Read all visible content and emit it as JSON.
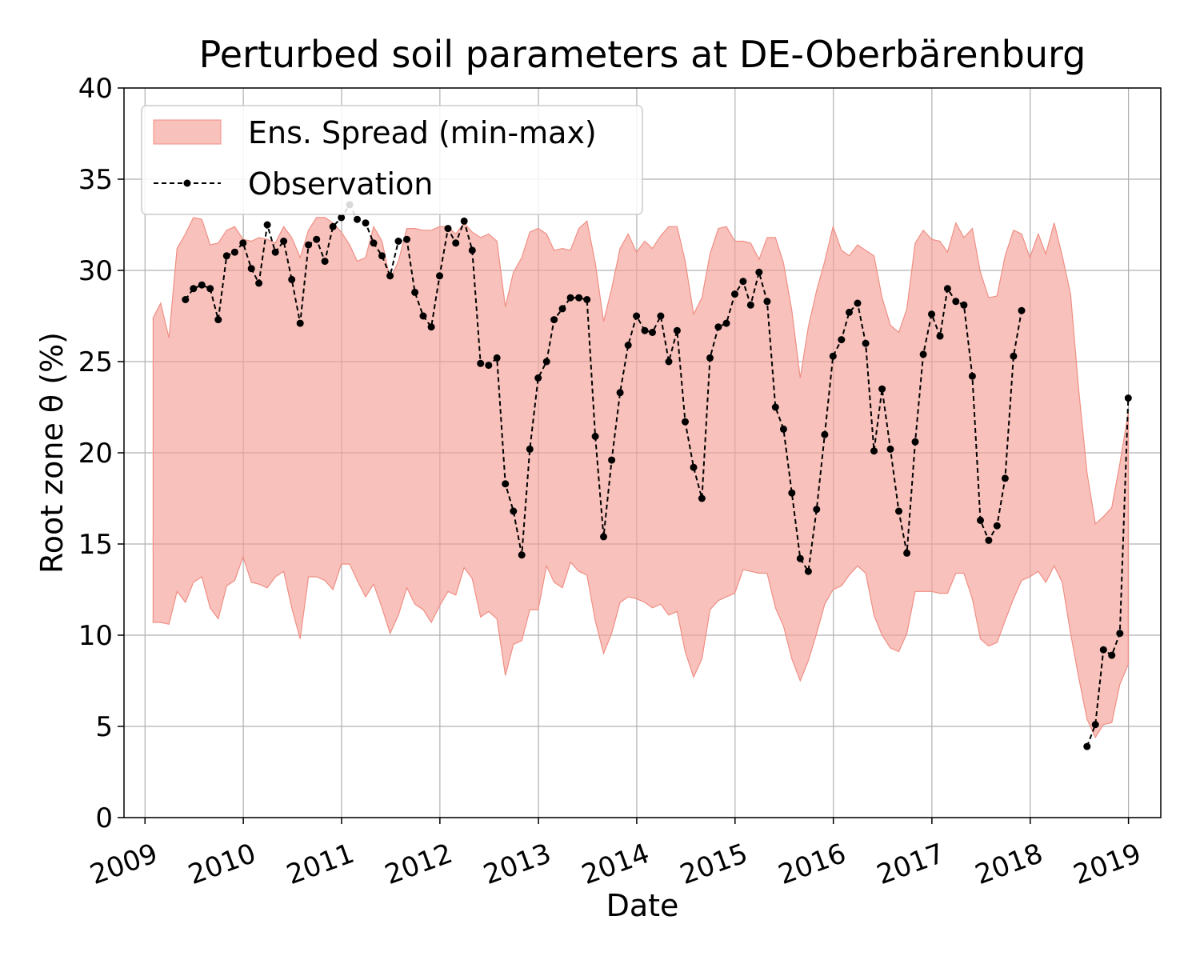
{
  "chart_data": {
    "type": "line",
    "title": "Perturbed soil parameters at DE-Oberbärenburg",
    "xlabel": "Date",
    "ylabel": "Root zone θ  (%)",
    "x_axis": {
      "type": "date",
      "range": [
        "2008-10-15",
        "2019-05-01"
      ],
      "tick_labels": [
        "2009",
        "2010",
        "2011",
        "2012",
        "2013",
        "2014",
        "2015",
        "2016",
        "2017",
        "2018",
        "2019"
      ],
      "tick_rotation_deg": 20
    },
    "ylim": [
      0,
      40
    ],
    "y_ticks": [
      0,
      5,
      10,
      15,
      20,
      25,
      30,
      35,
      40
    ],
    "grid": true,
    "legend": {
      "position": "top-left",
      "entries": [
        "Ens. Spread (min-max)",
        "Observation"
      ]
    },
    "colors": {
      "spread_fill": "#f4a097",
      "spread_edge": "#ef8f85",
      "observation": "#000000",
      "grid": "#b0b0b0"
    },
    "series": [
      {
        "name": "Ens. Spread (min-max)",
        "kind": "band",
        "points": [
          [
            "2009-01-31",
            10.7,
            27.4
          ],
          [
            "2009-02-28",
            10.7,
            28.2
          ],
          [
            "2009-03-31",
            10.6,
            26.3
          ],
          [
            "2009-04-30",
            12.4,
            31.2
          ],
          [
            "2009-05-31",
            11.8,
            32.0
          ],
          [
            "2009-06-30",
            12.9,
            32.9
          ],
          [
            "2009-07-31",
            13.2,
            32.8
          ],
          [
            "2009-08-31",
            11.5,
            31.4
          ],
          [
            "2009-09-30",
            10.9,
            31.5
          ],
          [
            "2009-10-31",
            12.7,
            32.2
          ],
          [
            "2009-11-30",
            13.0,
            32.4
          ],
          [
            "2009-12-31",
            14.3,
            31.7
          ],
          [
            "2010-01-31",
            12.9,
            31.6
          ],
          [
            "2010-02-28",
            12.8,
            31.8
          ],
          [
            "2010-03-31",
            12.6,
            31.7
          ],
          [
            "2010-04-30",
            13.2,
            31.5
          ],
          [
            "2010-05-31",
            13.5,
            32.4
          ],
          [
            "2010-06-30",
            11.5,
            31.8
          ],
          [
            "2010-07-31",
            9.8,
            30.7
          ],
          [
            "2010-08-31",
            13.2,
            32.2
          ],
          [
            "2010-09-30",
            13.2,
            32.9
          ],
          [
            "2010-10-31",
            13.0,
            32.9
          ],
          [
            "2010-11-30",
            12.5,
            32.6
          ],
          [
            "2010-12-31",
            13.9,
            32.1
          ],
          [
            "2011-01-31",
            13.9,
            31.4
          ],
          [
            "2011-02-28",
            13.0,
            30.5
          ],
          [
            "2011-03-31",
            12.1,
            30.7
          ],
          [
            "2011-04-30",
            12.8,
            32.4
          ],
          [
            "2011-05-31",
            11.5,
            31.6
          ],
          [
            "2011-06-30",
            10.1,
            29.5
          ],
          [
            "2011-07-31",
            11.1,
            30.5
          ],
          [
            "2011-08-31",
            12.6,
            32.3
          ],
          [
            "2011-09-30",
            11.7,
            32.3
          ],
          [
            "2011-10-31",
            11.4,
            32.2
          ],
          [
            "2011-11-30",
            10.7,
            32.2
          ],
          [
            "2011-12-31",
            11.6,
            32.4
          ],
          [
            "2012-01-31",
            12.4,
            32.4
          ],
          [
            "2012-02-29",
            12.2,
            32.0
          ],
          [
            "2012-03-31",
            13.7,
            32.6
          ],
          [
            "2012-04-30",
            13.1,
            32.1
          ],
          [
            "2012-05-31",
            11.0,
            31.8
          ],
          [
            "2012-06-30",
            11.3,
            32.0
          ],
          [
            "2012-07-31",
            10.9,
            31.6
          ],
          [
            "2012-08-31",
            7.8,
            28.0
          ],
          [
            "2012-09-30",
            9.5,
            29.9
          ],
          [
            "2012-10-31",
            9.7,
            30.7
          ],
          [
            "2012-11-30",
            11.4,
            32.1
          ],
          [
            "2012-12-31",
            11.4,
            32.3
          ],
          [
            "2013-01-31",
            13.8,
            32.0
          ],
          [
            "2013-02-28",
            12.9,
            31.1
          ],
          [
            "2013-03-31",
            12.6,
            31.2
          ],
          [
            "2013-04-30",
            14.0,
            31.1
          ],
          [
            "2013-05-31",
            13.5,
            32.3
          ],
          [
            "2013-06-30",
            13.3,
            32.7
          ],
          [
            "2013-07-31",
            10.8,
            30.4
          ],
          [
            "2013-08-31",
            9.0,
            27.2
          ],
          [
            "2013-09-30",
            10.1,
            29.0
          ],
          [
            "2013-10-31",
            11.8,
            31.2
          ],
          [
            "2013-11-30",
            12.1,
            32.0
          ],
          [
            "2013-12-31",
            12.0,
            31.0
          ],
          [
            "2014-01-31",
            11.8,
            31.6
          ],
          [
            "2014-02-28",
            11.5,
            31.2
          ],
          [
            "2014-03-31",
            11.7,
            31.9
          ],
          [
            "2014-04-30",
            11.1,
            32.4
          ],
          [
            "2014-05-31",
            11.3,
            32.4
          ],
          [
            "2014-06-30",
            9.1,
            30.5
          ],
          [
            "2014-07-31",
            7.7,
            27.6
          ],
          [
            "2014-08-31",
            8.7,
            28.5
          ],
          [
            "2014-09-30",
            11.4,
            30.9
          ],
          [
            "2014-10-31",
            11.9,
            32.3
          ],
          [
            "2014-11-30",
            12.1,
            32.4
          ],
          [
            "2014-12-31",
            12.3,
            31.6
          ],
          [
            "2015-01-31",
            13.6,
            31.6
          ],
          [
            "2015-02-28",
            13.5,
            31.5
          ],
          [
            "2015-03-31",
            13.4,
            30.6
          ],
          [
            "2015-04-30",
            13.4,
            31.8
          ],
          [
            "2015-05-31",
            11.5,
            31.8
          ],
          [
            "2015-06-30",
            10.5,
            30.4
          ],
          [
            "2015-07-31",
            8.7,
            27.8
          ],
          [
            "2015-08-31",
            7.5,
            24.1
          ],
          [
            "2015-09-30",
            8.6,
            26.9
          ],
          [
            "2015-10-31",
            10.1,
            28.9
          ],
          [
            "2015-11-30",
            11.7,
            30.5
          ],
          [
            "2015-12-31",
            12.5,
            32.4
          ],
          [
            "2016-01-31",
            12.7,
            31.1
          ],
          [
            "2016-02-29",
            13.3,
            30.8
          ],
          [
            "2016-03-31",
            13.8,
            31.4
          ],
          [
            "2016-04-30",
            13.4,
            31.1
          ],
          [
            "2016-05-31",
            11.1,
            30.8
          ],
          [
            "2016-06-30",
            10.0,
            28.5
          ],
          [
            "2016-07-31",
            9.3,
            27.0
          ],
          [
            "2016-08-31",
            9.1,
            26.6
          ],
          [
            "2016-09-30",
            10.1,
            27.9
          ],
          [
            "2016-10-31",
            12.4,
            31.5
          ],
          [
            "2016-11-30",
            12.4,
            32.2
          ],
          [
            "2016-12-31",
            12.4,
            31.7
          ],
          [
            "2017-01-31",
            12.3,
            31.6
          ],
          [
            "2017-02-28",
            12.3,
            31.0
          ],
          [
            "2017-03-31",
            13.4,
            32.6
          ],
          [
            "2017-04-30",
            13.4,
            31.8
          ],
          [
            "2017-05-31",
            12.0,
            32.3
          ],
          [
            "2017-06-30",
            9.8,
            29.9
          ],
          [
            "2017-07-31",
            9.4,
            28.5
          ],
          [
            "2017-08-31",
            9.6,
            28.6
          ],
          [
            "2017-09-30",
            10.8,
            30.8
          ],
          [
            "2017-10-31",
            12.0,
            32.2
          ],
          [
            "2017-11-30",
            13.0,
            32.0
          ],
          [
            "2017-12-31",
            13.2,
            30.7
          ],
          [
            "2018-01-31",
            13.5,
            32.0
          ],
          [
            "2018-02-28",
            12.9,
            30.9
          ],
          [
            "2018-03-31",
            13.8,
            32.6
          ],
          [
            "2018-04-30",
            12.9,
            30.8
          ],
          [
            "2018-05-31",
            10.1,
            28.7
          ],
          [
            "2018-06-30",
            7.7,
            23.5
          ],
          [
            "2018-07-31",
            5.4,
            18.9
          ],
          [
            "2018-08-31",
            4.4,
            16.1
          ],
          [
            "2018-09-30",
            5.1,
            16.5
          ],
          [
            "2018-10-31",
            5.2,
            17.0
          ],
          [
            "2018-11-30",
            7.3,
            19.4
          ],
          [
            "2018-12-31",
            8.4,
            22.2
          ]
        ]
      },
      {
        "name": "Observation",
        "kind": "line-markers",
        "points": [
          [
            "2009-05-31",
            28.4
          ],
          [
            "2009-06-30",
            29.0
          ],
          [
            "2009-07-31",
            29.2
          ],
          [
            "2009-08-31",
            29.0
          ],
          [
            "2009-09-30",
            27.3
          ],
          [
            "2009-10-31",
            30.8
          ],
          [
            "2009-11-30",
            31.0
          ],
          [
            "2009-12-31",
            31.5
          ],
          [
            "2010-01-31",
            30.1
          ],
          [
            "2010-02-28",
            29.3
          ],
          [
            "2010-03-31",
            32.5
          ],
          [
            "2010-04-30",
            31.0
          ],
          [
            "2010-05-31",
            31.6
          ],
          [
            "2010-06-30",
            29.5
          ],
          [
            "2010-07-31",
            27.1
          ],
          [
            "2010-08-31",
            31.4
          ],
          [
            "2010-09-30",
            31.7
          ],
          [
            "2010-10-31",
            30.5
          ],
          [
            "2010-11-30",
            32.4
          ],
          [
            "2010-12-31",
            32.9
          ],
          [
            "2011-01-31",
            33.6
          ],
          [
            "2011-02-28",
            32.8
          ],
          [
            "2011-03-31",
            32.6
          ],
          [
            "2011-04-30",
            31.5
          ],
          [
            "2011-05-31",
            30.8
          ],
          [
            "2011-06-30",
            29.7
          ],
          [
            "2011-07-31",
            31.6
          ],
          [
            "2011-08-31",
            31.7
          ],
          [
            "2011-09-30",
            28.8
          ],
          [
            "2011-10-31",
            27.5
          ],
          [
            "2011-11-30",
            26.9
          ],
          [
            "2011-12-31",
            29.7
          ],
          [
            "2012-01-31",
            32.3
          ],
          [
            "2012-02-29",
            31.5
          ],
          [
            "2012-03-31",
            32.7
          ],
          [
            "2012-04-30",
            31.1
          ],
          [
            "2012-05-31",
            24.9
          ],
          [
            "2012-06-30",
            24.8
          ],
          [
            "2012-07-31",
            25.2
          ],
          [
            "2012-08-31",
            18.3
          ],
          [
            "2012-09-30",
            16.8
          ],
          [
            "2012-10-31",
            14.4
          ],
          [
            "2012-11-30",
            20.2
          ],
          [
            "2012-12-31",
            24.1
          ],
          [
            "2013-01-31",
            25.0
          ],
          [
            "2013-02-28",
            27.3
          ],
          [
            "2013-03-31",
            27.9
          ],
          [
            "2013-04-30",
            28.5
          ],
          [
            "2013-05-31",
            28.5
          ],
          [
            "2013-06-30",
            28.4
          ],
          [
            "2013-07-31",
            20.9
          ],
          [
            "2013-08-31",
            15.4
          ],
          [
            "2013-09-30",
            19.6
          ],
          [
            "2013-10-31",
            23.3
          ],
          [
            "2013-11-30",
            25.9
          ],
          [
            "2013-12-31",
            27.5
          ],
          [
            "2014-01-31",
            26.7
          ],
          [
            "2014-02-28",
            26.6
          ],
          [
            "2014-03-31",
            27.5
          ],
          [
            "2014-04-30",
            25.0
          ],
          [
            "2014-05-31",
            26.7
          ],
          [
            "2014-06-30",
            21.7
          ],
          [
            "2014-07-31",
            19.2
          ],
          [
            "2014-08-31",
            17.5
          ],
          [
            "2014-09-30",
            25.2
          ],
          [
            "2014-10-31",
            26.9
          ],
          [
            "2014-11-30",
            27.1
          ],
          [
            "2014-12-31",
            28.7
          ],
          [
            "2015-01-31",
            29.4
          ],
          [
            "2015-02-28",
            28.1
          ],
          [
            "2015-03-31",
            29.9
          ],
          [
            "2015-04-30",
            28.3
          ],
          [
            "2015-05-31",
            22.5
          ],
          [
            "2015-06-30",
            21.3
          ],
          [
            "2015-07-31",
            17.8
          ],
          [
            "2015-08-31",
            14.2
          ],
          [
            "2015-09-30",
            13.5
          ],
          [
            "2015-10-31",
            16.9
          ],
          [
            "2015-11-30",
            21.0
          ],
          [
            "2015-12-31",
            25.3
          ],
          [
            "2016-01-31",
            26.2
          ],
          [
            "2016-02-29",
            27.7
          ],
          [
            "2016-03-31",
            28.2
          ],
          [
            "2016-04-30",
            26.0
          ],
          [
            "2016-05-31",
            20.1
          ],
          [
            "2016-06-30",
            23.5
          ],
          [
            "2016-07-31",
            20.2
          ],
          [
            "2016-08-31",
            16.8
          ],
          [
            "2016-09-30",
            14.5
          ],
          [
            "2016-10-31",
            20.6
          ],
          [
            "2016-11-30",
            25.4
          ],
          [
            "2016-12-31",
            27.6
          ],
          [
            "2017-01-31",
            26.4
          ],
          [
            "2017-02-28",
            29.0
          ],
          [
            "2017-03-31",
            28.3
          ],
          [
            "2017-04-30",
            28.1
          ],
          [
            "2017-05-31",
            24.2
          ],
          [
            "2017-06-30",
            16.3
          ],
          [
            "2017-07-31",
            15.2
          ],
          [
            "2017-08-31",
            16.0
          ],
          [
            "2017-09-30",
            18.6
          ],
          [
            "2017-10-31",
            25.3
          ],
          [
            "2017-11-30",
            27.8
          ],
          null,
          [
            "2018-07-31",
            3.9
          ],
          [
            "2018-08-31",
            5.1
          ],
          [
            "2018-09-30",
            9.2
          ],
          [
            "2018-10-31",
            8.9
          ],
          [
            "2018-11-30",
            10.1
          ],
          [
            "2018-12-31",
            23.0
          ]
        ]
      }
    ]
  }
}
